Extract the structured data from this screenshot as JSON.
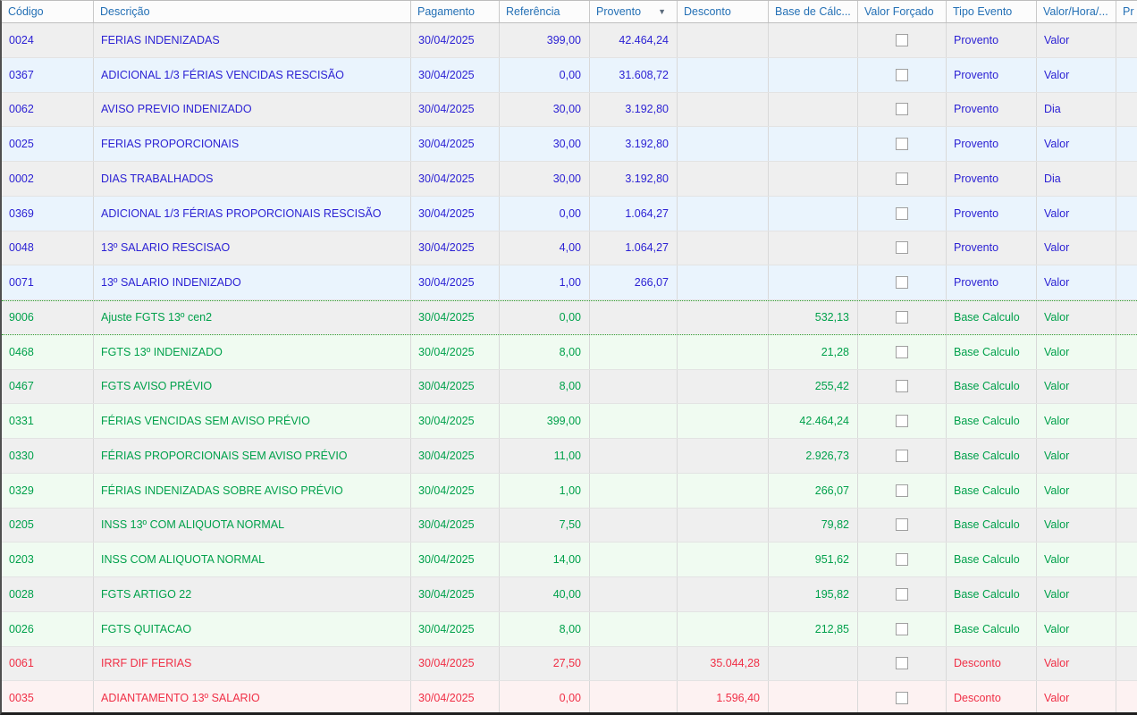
{
  "header": {
    "sort_column": "Provento",
    "sort_direction": "desc",
    "columns": [
      {
        "label": "Código"
      },
      {
        "label": "Descrição"
      },
      {
        "label": "Pagamento"
      },
      {
        "label": "Referência"
      },
      {
        "label": "Provento"
      },
      {
        "label": "Desconto"
      },
      {
        "label": "Base de Cálc..."
      },
      {
        "label": "Valor Forçado"
      },
      {
        "label": "Tipo Evento"
      },
      {
        "label": "Valor/Hora/..."
      },
      {
        "label": "Pr"
      }
    ]
  },
  "icons": {
    "sort_desc": "▼"
  },
  "colors": {
    "header_text": "#2470b5",
    "provento_text": "#2c22d4",
    "base_text": "#00a14b",
    "desconto_text": "#f02f46",
    "row_gray_bg": "#efefef",
    "row_blue_bg": "#eaf4fd",
    "row_green_bg": "#f0fbf1",
    "row_red_bg": "#fdf2f2",
    "focus_border": "#2f9e2f"
  },
  "rows": [
    {
      "codigo": "0024",
      "descricao": "FERIAS INDENIZADAS",
      "pagamento": "30/04/2025",
      "referencia": "399,00",
      "provento": "42.464,24",
      "desconto": "",
      "base_calculo": "",
      "valor_forcado": false,
      "tipo_evento": "Provento",
      "valor_hora": "Valor",
      "pr": "",
      "tone": "blue",
      "shade": "gray",
      "focused": false
    },
    {
      "codigo": "0367",
      "descricao": "ADICIONAL 1/3 FÉRIAS VENCIDAS RESCISÃO",
      "pagamento": "30/04/2025",
      "referencia": "0,00",
      "provento": "31.608,72",
      "desconto": "",
      "base_calculo": "",
      "valor_forcado": false,
      "tipo_evento": "Provento",
      "valor_hora": "Valor",
      "pr": "",
      "tone": "blue",
      "shade": "tint",
      "focused": false
    },
    {
      "codigo": "0062",
      "descricao": "AVISO PREVIO INDENIZADO",
      "pagamento": "30/04/2025",
      "referencia": "30,00",
      "provento": "3.192,80",
      "desconto": "",
      "base_calculo": "",
      "valor_forcado": false,
      "tipo_evento": "Provento",
      "valor_hora": "Dia",
      "pr": "",
      "tone": "blue",
      "shade": "gray",
      "focused": false
    },
    {
      "codigo": "0025",
      "descricao": "FERIAS PROPORCIONAIS",
      "pagamento": "30/04/2025",
      "referencia": "30,00",
      "provento": "3.192,80",
      "desconto": "",
      "base_calculo": "",
      "valor_forcado": false,
      "tipo_evento": "Provento",
      "valor_hora": "Valor",
      "pr": "",
      "tone": "blue",
      "shade": "tint",
      "focused": false
    },
    {
      "codigo": "0002",
      "descricao": "DIAS TRABALHADOS",
      "pagamento": "30/04/2025",
      "referencia": "30,00",
      "provento": "3.192,80",
      "desconto": "",
      "base_calculo": "",
      "valor_forcado": false,
      "tipo_evento": "Provento",
      "valor_hora": "Dia",
      "pr": "",
      "tone": "blue",
      "shade": "gray",
      "focused": false
    },
    {
      "codigo": "0369",
      "descricao": "ADICIONAL 1/3 FÉRIAS PROPORCIONAIS RESCISÃO",
      "pagamento": "30/04/2025",
      "referencia": "0,00",
      "provento": "1.064,27",
      "desconto": "",
      "base_calculo": "",
      "valor_forcado": false,
      "tipo_evento": "Provento",
      "valor_hora": "Valor",
      "pr": "",
      "tone": "blue",
      "shade": "tint",
      "focused": false
    },
    {
      "codigo": "0048",
      "descricao": "13º SALARIO RESCISAO",
      "pagamento": "30/04/2025",
      "referencia": "4,00",
      "provento": "1.064,27",
      "desconto": "",
      "base_calculo": "",
      "valor_forcado": false,
      "tipo_evento": "Provento",
      "valor_hora": "Valor",
      "pr": "",
      "tone": "blue",
      "shade": "gray",
      "focused": false
    },
    {
      "codigo": "0071",
      "descricao": "13º SALARIO INDENIZADO",
      "pagamento": "30/04/2025",
      "referencia": "1,00",
      "provento": "266,07",
      "desconto": "",
      "base_calculo": "",
      "valor_forcado": false,
      "tipo_evento": "Provento",
      "valor_hora": "Valor",
      "pr": "",
      "tone": "blue",
      "shade": "tint",
      "focused": false
    },
    {
      "codigo": "9006",
      "descricao": "Ajuste FGTS 13º cen2",
      "pagamento": "30/04/2025",
      "referencia": "0,00",
      "provento": "",
      "desconto": "",
      "base_calculo": "532,13",
      "valor_forcado": false,
      "tipo_evento": "Base Calculo",
      "valor_hora": "Valor",
      "pr": "",
      "tone": "green",
      "shade": "gray",
      "focused": true
    },
    {
      "codigo": "0468",
      "descricao": "FGTS 13º INDENIZADO",
      "pagamento": "30/04/2025",
      "referencia": "8,00",
      "provento": "",
      "desconto": "",
      "base_calculo": "21,28",
      "valor_forcado": false,
      "tipo_evento": "Base Calculo",
      "valor_hora": "Valor",
      "pr": "",
      "tone": "green",
      "shade": "tint",
      "focused": false
    },
    {
      "codigo": "0467",
      "descricao": "FGTS AVISO PRÉVIO",
      "pagamento": "30/04/2025",
      "referencia": "8,00",
      "provento": "",
      "desconto": "",
      "base_calculo": "255,42",
      "valor_forcado": false,
      "tipo_evento": "Base Calculo",
      "valor_hora": "Valor",
      "pr": "",
      "tone": "green",
      "shade": "gray",
      "focused": false
    },
    {
      "codigo": "0331",
      "descricao": "FÉRIAS VENCIDAS SEM AVISO PRÉVIO",
      "pagamento": "30/04/2025",
      "referencia": "399,00",
      "provento": "",
      "desconto": "",
      "base_calculo": "42.464,24",
      "valor_forcado": false,
      "tipo_evento": "Base Calculo",
      "valor_hora": "Valor",
      "pr": "",
      "tone": "green",
      "shade": "tint",
      "focused": false
    },
    {
      "codigo": "0330",
      "descricao": "FÉRIAS PROPORCIONAIS SEM AVISO PRÉVIO",
      "pagamento": "30/04/2025",
      "referencia": "11,00",
      "provento": "",
      "desconto": "",
      "base_calculo": "2.926,73",
      "valor_forcado": false,
      "tipo_evento": "Base Calculo",
      "valor_hora": "Valor",
      "pr": "",
      "tone": "green",
      "shade": "gray",
      "focused": false
    },
    {
      "codigo": "0329",
      "descricao": "FÉRIAS INDENIZADAS SOBRE AVISO PRÉVIO",
      "pagamento": "30/04/2025",
      "referencia": "1,00",
      "provento": "",
      "desconto": "",
      "base_calculo": "266,07",
      "valor_forcado": false,
      "tipo_evento": "Base Calculo",
      "valor_hora": "Valor",
      "pr": "",
      "tone": "green",
      "shade": "tint",
      "focused": false
    },
    {
      "codigo": "0205",
      "descricao": "INSS 13º COM ALIQUOTA NORMAL",
      "pagamento": "30/04/2025",
      "referencia": "7,50",
      "provento": "",
      "desconto": "",
      "base_calculo": "79,82",
      "valor_forcado": false,
      "tipo_evento": "Base Calculo",
      "valor_hora": "Valor",
      "pr": "",
      "tone": "green",
      "shade": "gray",
      "focused": false
    },
    {
      "codigo": "0203",
      "descricao": "INSS COM ALIQUOTA NORMAL",
      "pagamento": "30/04/2025",
      "referencia": "14,00",
      "provento": "",
      "desconto": "",
      "base_calculo": "951,62",
      "valor_forcado": false,
      "tipo_evento": "Base Calculo",
      "valor_hora": "Valor",
      "pr": "",
      "tone": "green",
      "shade": "tint",
      "focused": false
    },
    {
      "codigo": "0028",
      "descricao": "FGTS ARTIGO 22",
      "pagamento": "30/04/2025",
      "referencia": "40,00",
      "provento": "",
      "desconto": "",
      "base_calculo": "195,82",
      "valor_forcado": false,
      "tipo_evento": "Base Calculo",
      "valor_hora": "Valor",
      "pr": "",
      "tone": "green",
      "shade": "gray",
      "focused": false
    },
    {
      "codigo": "0026",
      "descricao": "FGTS QUITACAO",
      "pagamento": "30/04/2025",
      "referencia": "8,00",
      "provento": "",
      "desconto": "",
      "base_calculo": "212,85",
      "valor_forcado": false,
      "tipo_evento": "Base Calculo",
      "valor_hora": "Valor",
      "pr": "",
      "tone": "green",
      "shade": "tint",
      "focused": false
    },
    {
      "codigo": "0061",
      "descricao": "IRRF DIF FERIAS",
      "pagamento": "30/04/2025",
      "referencia": "27,50",
      "provento": "",
      "desconto": "35.044,28",
      "base_calculo": "",
      "valor_forcado": false,
      "tipo_evento": "Desconto",
      "valor_hora": "Valor",
      "pr": "",
      "tone": "red",
      "shade": "gray",
      "focused": false
    },
    {
      "codigo": "0035",
      "descricao": "ADIANTAMENTO 13º SALARIO",
      "pagamento": "30/04/2025",
      "referencia": "0,00",
      "provento": "",
      "desconto": "1.596,40",
      "base_calculo": "",
      "valor_forcado": false,
      "tipo_evento": "Desconto",
      "valor_hora": "Valor",
      "pr": "",
      "tone": "red",
      "shade": "tint",
      "focused": false
    }
  ]
}
